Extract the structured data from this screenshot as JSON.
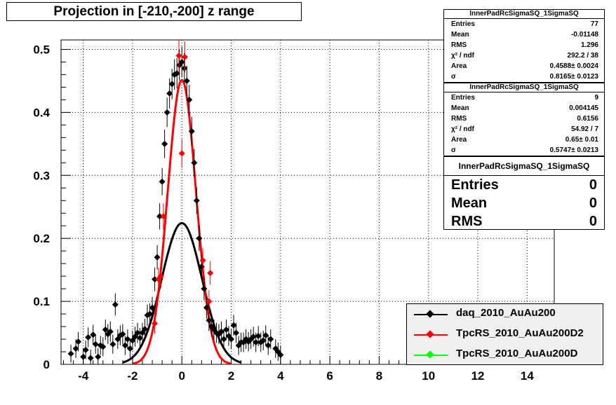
{
  "title": "Projection in [-210,-200] z range",
  "stats_boxes": [
    {
      "name": "InnerPadRcSigmaSQ_1SigmaSQ",
      "rows": [
        {
          "label": "Entries",
          "value": "77"
        },
        {
          "label": "Mean",
          "value": "-0.01148"
        },
        {
          "label": "RMS",
          "value": "1.296"
        },
        {
          "label": "χ² / ndf",
          "value": "292.2 / 38"
        },
        {
          "label": "Area",
          "value": "0.4588± 0.0024"
        },
        {
          "label": "σ",
          "value": "0.8165± 0.0123"
        }
      ]
    },
    {
      "name": "InnerPadRcSigmaSQ_1SigmaSQ",
      "rows": [
        {
          "label": "Entries",
          "value": "9"
        },
        {
          "label": "Mean",
          "value": "0.004145"
        },
        {
          "label": "RMS",
          "value": "0.6156"
        },
        {
          "label": "χ² / ndf",
          "value": "54.92 / 7"
        },
        {
          "label": "Area",
          "value": "0.65± 0.01"
        },
        {
          "label": "σ",
          "value": "0.5747± 0.0213"
        }
      ]
    },
    {
      "name": "InnerPadRcSigmaSQ_1SigmaSQ",
      "rows": [
        {
          "label": "Entries",
          "value": "0"
        },
        {
          "label": "Mean",
          "value": "0"
        },
        {
          "label": "RMS",
          "value": "0"
        }
      ]
    }
  ],
  "chart_data": {
    "type": "scatter",
    "title": "Projection in [-210,-200] z range",
    "xlabel": "",
    "ylabel": "",
    "xlim": [
      -4.9,
      15.1
    ],
    "ylim": [
      0,
      0.515
    ],
    "x_ticks": [
      -4,
      -2,
      0,
      2,
      4,
      6,
      8,
      10,
      12,
      14
    ],
    "y_ticks": [
      0,
      0.1,
      0.2,
      0.3,
      0.4,
      0.5
    ],
    "grid": true,
    "legend_position": "bottom-right",
    "series": [
      {
        "name": "daq_2010_AuAu200",
        "color": "#000000",
        "marker": "diamond",
        "x": [
          -4.5,
          -4.3,
          -4.2,
          -4.0,
          -3.9,
          -3.8,
          -3.7,
          -3.6,
          -3.5,
          -3.4,
          -3.3,
          -3.2,
          -3.1,
          -3.0,
          -2.9,
          -2.8,
          -2.7,
          -2.6,
          -2.5,
          -2.4,
          -2.3,
          -2.2,
          -2.1,
          -2.0,
          -1.9,
          -1.8,
          -1.7,
          -1.6,
          -1.5,
          -1.4,
          -1.3,
          -1.2,
          -1.1,
          -1.0,
          -0.9,
          -0.8,
          -0.7,
          -0.6,
          -0.5,
          -0.4,
          -0.3,
          -0.2,
          -0.1,
          0.0,
          0.1,
          0.2,
          0.3,
          0.4,
          0.5,
          0.6,
          0.7,
          0.8,
          0.9,
          1.0,
          1.1,
          1.2,
          1.3,
          1.4,
          1.5,
          1.6,
          1.7,
          1.8,
          1.9,
          2.0,
          2.1,
          2.2,
          2.3,
          2.4,
          2.5,
          2.6,
          2.7,
          2.8,
          2.9,
          3.0,
          3.1,
          3.2,
          3.3,
          3.4,
          3.5,
          3.6,
          3.8,
          3.9,
          4.0
        ],
        "y": [
          0.017,
          0.025,
          0.036,
          0.012,
          0.023,
          0.043,
          0.01,
          0.047,
          0.032,
          0.012,
          0.03,
          0.028,
          0.055,
          0.048,
          0.052,
          0.032,
          0.095,
          0.04,
          0.046,
          0.048,
          0.03,
          0.04,
          0.025,
          0.038,
          0.044,
          0.05,
          0.042,
          0.05,
          0.056,
          0.078,
          0.08,
          0.09,
          0.135,
          0.17,
          0.235,
          0.29,
          0.35,
          0.4,
          0.43,
          0.445,
          0.46,
          0.462,
          0.475,
          0.48,
          0.47,
          0.45,
          0.42,
          0.37,
          0.32,
          0.26,
          0.2,
          0.155,
          0.12,
          0.09,
          0.07,
          0.06,
          0.055,
          0.05,
          0.048,
          0.052,
          0.04,
          0.055,
          0.045,
          0.04,
          0.062,
          0.05,
          0.03,
          0.035,
          0.035,
          0.04,
          0.036,
          0.04,
          0.044,
          0.035,
          0.045,
          0.035,
          0.038,
          0.046,
          0.03,
          0.04,
          0.025,
          0.02,
          0.015
        ]
      },
      {
        "name": "TpcRS_2010_AuAu200D2",
        "color": "#ff0000",
        "marker": "diamond",
        "x": [
          -1.1,
          -0.95,
          -0.85,
          -0.75,
          -0.12,
          0.0,
          0.12,
          0.85,
          1.1,
          1.15
        ],
        "y": [
          0.065,
          0.135,
          0.14,
          0.235,
          0.49,
          0.335,
          0.488,
          0.165,
          0.1,
          0.145
        ]
      },
      {
        "name": "TpcRS_2010_AuAu200D",
        "color": "#00ff00",
        "marker": "diamond",
        "x": [],
        "y": []
      }
    ],
    "fits": [
      {
        "series": "daq_2010_AuAu200",
        "color": "#000000",
        "shape": "gaussian",
        "area": 0.4588,
        "sigma": 0.8165
      },
      {
        "series": "TpcRS_2010_AuAu200D2",
        "color": "#ff0000",
        "shape": "gaussian",
        "area": 0.65,
        "sigma": 0.5747
      }
    ]
  }
}
